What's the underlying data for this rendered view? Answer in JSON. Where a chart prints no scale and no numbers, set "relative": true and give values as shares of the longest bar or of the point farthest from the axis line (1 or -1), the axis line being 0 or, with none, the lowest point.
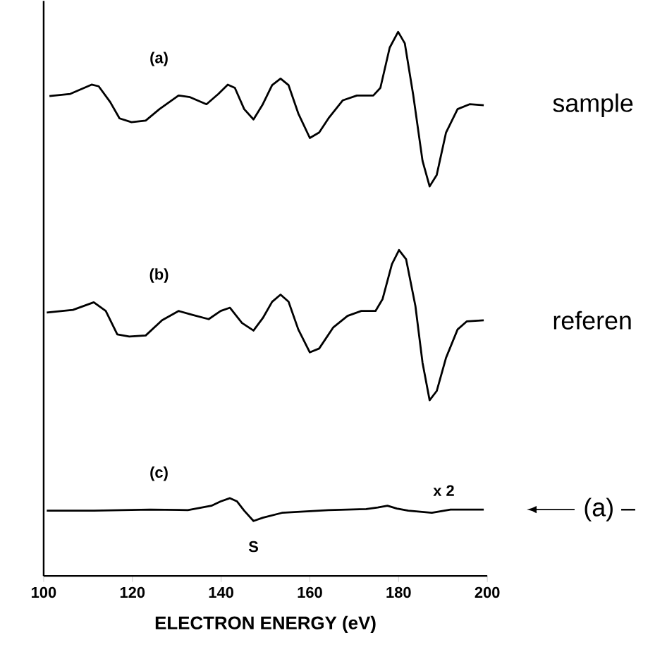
{
  "chart_data": {
    "type": "line",
    "relative": true,
    "xlabel": "ELECTRON ENERGY (eV)",
    "xlim": [
      100,
      200
    ],
    "xticks": [
      100,
      120,
      140,
      160,
      180,
      200
    ],
    "series": [
      {
        "name": "(a)",
        "color": "#000000",
        "x": [
          101.3,
          106.0,
          110.8,
          112.4,
          115.0,
          117.1,
          119.8,
          123.0,
          126.1,
          130.4,
          133.0,
          136.7,
          139.4,
          141.5,
          143.1,
          145.2,
          147.3,
          149.4,
          151.5,
          153.4,
          155.2,
          157.4,
          160.0,
          162.1,
          164.2,
          167.4,
          170.6,
          174.3,
          175.9,
          178.0,
          179.9,
          181.4,
          183.3,
          185.4,
          187.0,
          188.6,
          190.7,
          193.3,
          196.0,
          199.2
        ],
        "values": [
          0.882,
          0.886,
          0.903,
          0.9,
          0.871,
          0.841,
          0.834,
          0.837,
          0.858,
          0.883,
          0.88,
          0.867,
          0.886,
          0.903,
          0.897,
          0.858,
          0.839,
          0.867,
          0.902,
          0.914,
          0.902,
          0.85,
          0.805,
          0.815,
          0.841,
          0.874,
          0.883,
          0.883,
          0.897,
          0.971,
          1,
          0.979,
          0.884,
          0.763,
          0.716,
          0.737,
          0.815,
          0.858,
          0.867,
          0.865
        ]
      },
      {
        "name": "(b)",
        "color": "#000000",
        "x": [
          100.7,
          106.6,
          111.3,
          114.0,
          116.6,
          119.3,
          123.0,
          126.7,
          130.4,
          133.5,
          137.2,
          139.9,
          142.0,
          144.7,
          147.3,
          149.4,
          151.5,
          153.4,
          155.2,
          157.4,
          160.0,
          162.1,
          165.3,
          168.5,
          171.6,
          174.8,
          176.4,
          178.5,
          180.1,
          181.7,
          183.8,
          185.4,
          187.0,
          188.6,
          190.7,
          193.3,
          195.4,
          199.2
        ],
        "values": [
          0.484,
          0.489,
          0.503,
          0.487,
          0.444,
          0.44,
          0.442,
          0.47,
          0.487,
          0.48,
          0.472,
          0.487,
          0.493,
          0.465,
          0.451,
          0.474,
          0.504,
          0.517,
          0.504,
          0.453,
          0.411,
          0.418,
          0.457,
          0.478,
          0.487,
          0.487,
          0.509,
          0.573,
          0.599,
          0.582,
          0.496,
          0.392,
          0.323,
          0.34,
          0.401,
          0.453,
          0.468,
          0.47
        ]
      },
      {
        "name": "(c)",
        "color": "#000000",
        "x": [
          100.7,
          111.3,
          124.0,
          132.5,
          137.8,
          139.9,
          142.0,
          143.6,
          145.2,
          147.3,
          149.4,
          153.7,
          164.2,
          172.7,
          175.3,
          177.5,
          179.6,
          182.2,
          187.5,
          191.7,
          199.2
        ],
        "values": [
          0.12,
          0.12,
          0.122,
          0.121,
          0.129,
          0.137,
          0.143,
          0.137,
          0.12,
          0.101,
          0.107,
          0.116,
          0.121,
          0.123,
          0.126,
          0.129,
          0.124,
          0.12,
          0.116,
          0.122,
          0.122
        ]
      }
    ],
    "annotations": [
      "S",
      "x 2",
      "sample",
      "referen",
      "(a) –"
    ]
  }
}
